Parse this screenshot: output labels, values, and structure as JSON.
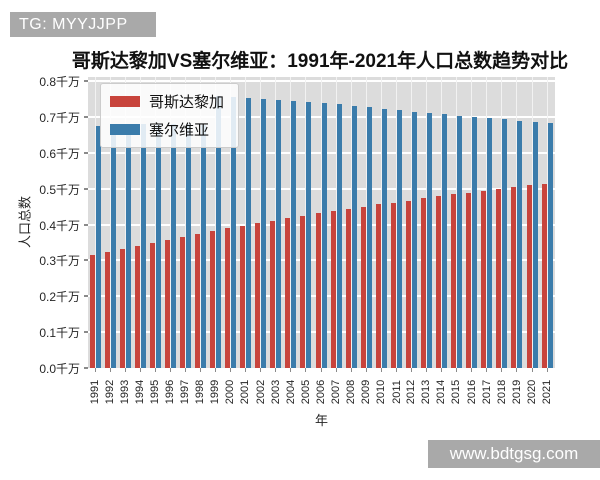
{
  "watermarks": {
    "top_left": "TG: MYYJJPP",
    "bottom_right": "www.bdtgsg.com"
  },
  "colors": {
    "costa_rica": "#c8443c",
    "serbia": "#3b7cab",
    "plot_background": "#dcdcdc",
    "page_background": "#ffffff",
    "watermark_background": "#a9a9a9"
  },
  "chart_data": {
    "type": "bar",
    "title": "哥斯达黎加VS塞尔维亚：1991年-2021年人口总数趋势对比",
    "xlabel": "年",
    "ylabel": "人口总数",
    "unit": "千万",
    "ylim": [
      0.0,
      0.8
    ],
    "yticks": [
      "0.0千万",
      "0.1千万",
      "0.2千万",
      "0.3千万",
      "0.4千万",
      "0.5千万",
      "0.6千万",
      "0.7千万",
      "0.8千万"
    ],
    "grid": true,
    "legend_position": "upper left",
    "categories": [
      "1991",
      "1992",
      "1993",
      "1994",
      "1995",
      "1996",
      "1997",
      "1998",
      "1999",
      "2000",
      "2001",
      "2002",
      "2003",
      "2004",
      "2005",
      "2006",
      "2007",
      "2008",
      "2009",
      "2010",
      "2011",
      "2012",
      "2013",
      "2014",
      "2015",
      "2016",
      "2017",
      "2018",
      "2019",
      "2020",
      "2021"
    ],
    "series": [
      {
        "name": "哥斯达黎加",
        "color": "#c8443c",
        "values": [
          0.316,
          0.324,
          0.332,
          0.34,
          0.349,
          0.357,
          0.365,
          0.373,
          0.381,
          0.389,
          0.396,
          0.404,
          0.411,
          0.418,
          0.425,
          0.431,
          0.437,
          0.444,
          0.45,
          0.456,
          0.461,
          0.467,
          0.473,
          0.479,
          0.484,
          0.489,
          0.494,
          0.499,
          0.504,
          0.509,
          0.514
        ]
      },
      {
        "name": "塞尔维亚",
        "color": "#3b7cab",
        "values": [
          0.676,
          0.677,
          0.678,
          0.679,
          0.679,
          0.679,
          0.679,
          0.678,
          0.758,
          0.756,
          0.753,
          0.75,
          0.747,
          0.744,
          0.741,
          0.738,
          0.735,
          0.731,
          0.727,
          0.723,
          0.719,
          0.715,
          0.711,
          0.707,
          0.703,
          0.699,
          0.696,
          0.693,
          0.69,
          0.687,
          0.683
        ]
      }
    ]
  }
}
